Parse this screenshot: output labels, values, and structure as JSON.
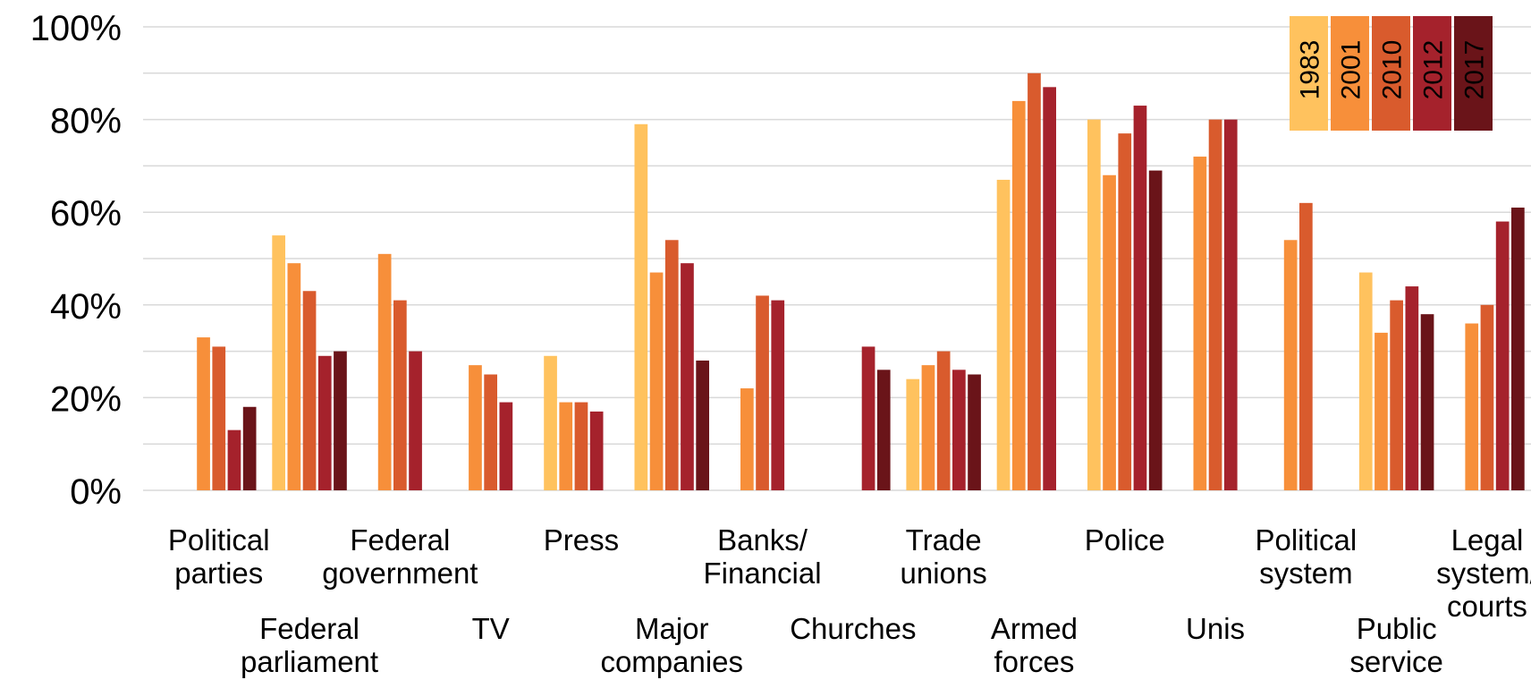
{
  "chart_data": {
    "type": "bar",
    "title": "",
    "xlabel": "",
    "ylabel": "",
    "ylim": [
      0,
      1
    ],
    "yticks": [
      "0%",
      "20%",
      "40%",
      "60%",
      "80%",
      "100%"
    ],
    "grid": true,
    "legend_position": "top-right",
    "categories": [
      [
        "Political",
        "parties"
      ],
      [
        "Federal",
        "parliament"
      ],
      [
        "Federal",
        "government"
      ],
      [
        "TV"
      ],
      [
        "Press"
      ],
      [
        "Major",
        "companies"
      ],
      [
        "Banks/",
        "Financial"
      ],
      [
        "Churches"
      ],
      [
        "Trade",
        "unions"
      ],
      [
        "Armed",
        "forces"
      ],
      [
        "Police"
      ],
      [
        "Unis"
      ],
      [
        "Political",
        "system"
      ],
      [
        "Public",
        "service"
      ],
      [
        "Legal",
        "system/",
        "courts"
      ]
    ],
    "series": [
      {
        "name": "1983",
        "color": "#FFC25E",
        "values": [
          null,
          0.55,
          null,
          null,
          0.29,
          0.79,
          null,
          null,
          0.24,
          0.67,
          0.8,
          null,
          null,
          0.47,
          null
        ]
      },
      {
        "name": "2001",
        "color": "#F78F3A",
        "values": [
          0.33,
          0.49,
          0.51,
          0.27,
          0.19,
          0.47,
          0.22,
          null,
          0.27,
          0.84,
          0.68,
          0.72,
          0.54,
          0.34,
          0.36
        ]
      },
      {
        "name": "2010",
        "color": "#D95B2D",
        "values": [
          0.31,
          0.43,
          0.41,
          0.25,
          0.19,
          0.54,
          0.42,
          null,
          0.3,
          0.9,
          0.77,
          0.8,
          0.62,
          0.41,
          0.4
        ]
      },
      {
        "name": "2012",
        "color": "#A5222C",
        "values": [
          0.13,
          0.29,
          0.3,
          0.19,
          0.17,
          0.49,
          0.41,
          0.31,
          0.26,
          0.87,
          0.83,
          0.8,
          null,
          0.44,
          0.58
        ]
      },
      {
        "name": "2017",
        "color": "#6A1419",
        "values": [
          0.18,
          0.3,
          null,
          null,
          null,
          0.28,
          null,
          0.26,
          0.25,
          null,
          0.69,
          null,
          null,
          0.38,
          0.61
        ]
      }
    ]
  }
}
